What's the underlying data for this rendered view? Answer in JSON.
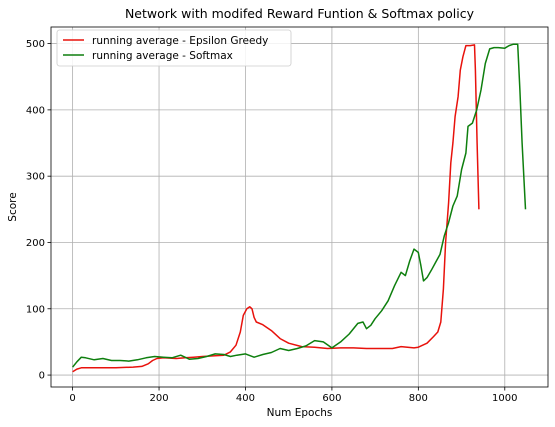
{
  "chart_data": {
    "type": "line",
    "title": "Network with modifed Reward Funtion & Softmax policy",
    "xlabel": "Num Epochs",
    "ylabel": "Score",
    "xlim": [
      -50,
      1100
    ],
    "ylim": [
      -18,
      525
    ],
    "grid": true,
    "legend_position": "top-left",
    "x_ticks": [
      0,
      200,
      400,
      600,
      800,
      1000
    ],
    "y_ticks": [
      0,
      100,
      200,
      300,
      400,
      500
    ],
    "series": [
      {
        "name": "running average  - Epsilon Greedy",
        "color": "#e8120c",
        "points": [
          [
            0,
            5
          ],
          [
            10,
            9
          ],
          [
            20,
            11
          ],
          [
            50,
            11
          ],
          [
            100,
            11
          ],
          [
            140,
            12
          ],
          [
            160,
            13
          ],
          [
            175,
            17
          ],
          [
            185,
            22
          ],
          [
            195,
            25
          ],
          [
            210,
            26
          ],
          [
            240,
            25
          ],
          [
            260,
            26
          ],
          [
            280,
            27
          ],
          [
            300,
            28
          ],
          [
            330,
            29
          ],
          [
            350,
            30
          ],
          [
            365,
            35
          ],
          [
            378,
            45
          ],
          [
            388,
            65
          ],
          [
            395,
            90
          ],
          [
            403,
            100
          ],
          [
            410,
            103
          ],
          [
            415,
            100
          ],
          [
            420,
            87
          ],
          [
            425,
            80
          ],
          [
            440,
            76
          ],
          [
            460,
            67
          ],
          [
            480,
            55
          ],
          [
            500,
            48
          ],
          [
            530,
            43
          ],
          [
            560,
            42
          ],
          [
            590,
            40
          ],
          [
            620,
            41
          ],
          [
            650,
            41
          ],
          [
            680,
            40
          ],
          [
            710,
            40
          ],
          [
            740,
            40
          ],
          [
            760,
            43
          ],
          [
            790,
            41
          ],
          [
            800,
            42
          ],
          [
            820,
            48
          ],
          [
            835,
            58
          ],
          [
            845,
            65
          ],
          [
            852,
            80
          ],
          [
            858,
            130
          ],
          [
            863,
            200
          ],
          [
            870,
            260
          ],
          [
            875,
            320
          ],
          [
            880,
            350
          ],
          [
            885,
            390
          ],
          [
            892,
            420
          ],
          [
            897,
            460
          ],
          [
            903,
            480
          ],
          [
            910,
            497
          ],
          [
            920,
            497
          ],
          [
            930,
            498
          ],
          [
            932,
            460
          ],
          [
            936,
            350
          ],
          [
            940,
            250
          ]
        ]
      },
      {
        "name": "running average -  Softmax",
        "color": "#0e7f0e",
        "points": [
          [
            0,
            12
          ],
          [
            10,
            20
          ],
          [
            20,
            27
          ],
          [
            30,
            26
          ],
          [
            50,
            23
          ],
          [
            70,
            25
          ],
          [
            90,
            22
          ],
          [
            110,
            22
          ],
          [
            130,
            21
          ],
          [
            150,
            23
          ],
          [
            170,
            26
          ],
          [
            190,
            28
          ],
          [
            210,
            27
          ],
          [
            230,
            26
          ],
          [
            250,
            30
          ],
          [
            270,
            24
          ],
          [
            290,
            25
          ],
          [
            310,
            28
          ],
          [
            330,
            32
          ],
          [
            350,
            31
          ],
          [
            365,
            28
          ],
          [
            380,
            30
          ],
          [
            400,
            32
          ],
          [
            420,
            27
          ],
          [
            440,
            31
          ],
          [
            460,
            34
          ],
          [
            480,
            40
          ],
          [
            500,
            37
          ],
          [
            520,
            40
          ],
          [
            540,
            44
          ],
          [
            560,
            52
          ],
          [
            580,
            50
          ],
          [
            600,
            41
          ],
          [
            620,
            50
          ],
          [
            640,
            62
          ],
          [
            660,
            78
          ],
          [
            672,
            80
          ],
          [
            680,
            70
          ],
          [
            690,
            75
          ],
          [
            700,
            85
          ],
          [
            715,
            97
          ],
          [
            730,
            112
          ],
          [
            745,
            135
          ],
          [
            760,
            155
          ],
          [
            770,
            150
          ],
          [
            780,
            172
          ],
          [
            790,
            190
          ],
          [
            800,
            185
          ],
          [
            806,
            165
          ],
          [
            812,
            142
          ],
          [
            820,
            147
          ],
          [
            830,
            158
          ],
          [
            840,
            170
          ],
          [
            850,
            182
          ],
          [
            860,
            210
          ],
          [
            870,
            230
          ],
          [
            880,
            255
          ],
          [
            890,
            270
          ],
          [
            900,
            310
          ],
          [
            910,
            335
          ],
          [
            915,
            375
          ],
          [
            925,
            380
          ],
          [
            935,
            400
          ],
          [
            945,
            430
          ],
          [
            955,
            470
          ],
          [
            965,
            492
          ],
          [
            975,
            494
          ],
          [
            985,
            494
          ],
          [
            1000,
            493
          ],
          [
            1010,
            497
          ],
          [
            1020,
            499
          ],
          [
            1030,
            499
          ],
          [
            1035,
            430
          ],
          [
            1040,
            350
          ],
          [
            1048,
            250
          ]
        ]
      }
    ]
  }
}
